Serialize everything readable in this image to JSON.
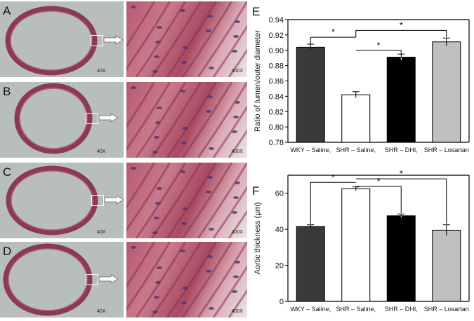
{
  "micrographs": [
    {
      "letter": "A",
      "low_mag": "40X",
      "high_mag": "400X"
    },
    {
      "letter": "B",
      "low_mag": "40X",
      "high_mag": "400X"
    },
    {
      "letter": "C",
      "low_mag": "40X",
      "high_mag": "400X"
    },
    {
      "letter": "D",
      "low_mag": "40X",
      "high_mag": "400X"
    }
  ],
  "chart_data": [
    {
      "panel": "E",
      "type": "bar",
      "title": "",
      "ylabel": "Ratio of lumen/outer diameter",
      "xlabel": "",
      "categories": [
        "WKY – Saline,",
        "SHR – Saline,",
        "SHR – DHI,",
        "SHR – Losartan"
      ],
      "values": [
        0.904,
        0.842,
        0.891,
        0.911
      ],
      "errors": [
        0.004,
        0.004,
        0.004,
        0.005
      ],
      "colors": [
        "#3a3a3a",
        "#ffffff",
        "#000000",
        "#c0c0c0"
      ],
      "ylim": [
        0.78,
        0.94
      ],
      "yticks": [
        "0.78",
        "0.80",
        "0.82",
        "0.84",
        "0.86",
        "0.88",
        "0.90",
        "0.92",
        "0.94"
      ],
      "significance": [
        "*",
        "*",
        "*"
      ],
      "grid": false
    },
    {
      "panel": "F",
      "type": "bar",
      "title": "",
      "ylabel": "Aortic thickness (μm)",
      "xlabel": "",
      "categories": [
        "WKY – Saline,",
        "SHR – Saline,",
        "SHR – DHI,",
        "SHR – Losartan"
      ],
      "values": [
        41.5,
        62.5,
        47.5,
        39.5
      ],
      "errors": [
        1.0,
        1.0,
        1.0,
        3.0
      ],
      "colors": [
        "#3a3a3a",
        "#ffffff",
        "#000000",
        "#c0c0c0"
      ],
      "ylim": [
        0,
        70
      ],
      "yticks": [
        "0",
        "20",
        "40",
        "60"
      ],
      "significance": [
        "*",
        "*",
        "*"
      ],
      "grid": false
    }
  ]
}
